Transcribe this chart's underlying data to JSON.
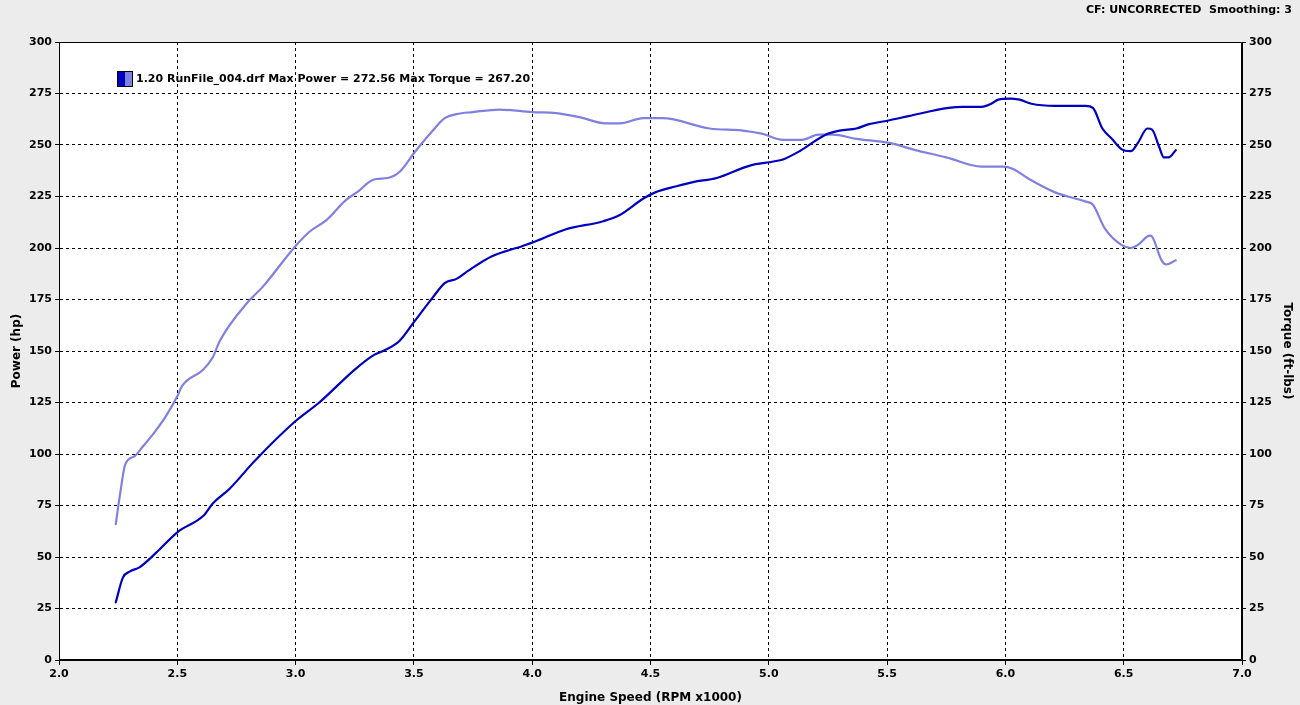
{
  "chart_data": {
    "type": "line",
    "xlabel": "Engine Speed (RPM x1000)",
    "ylabel": "Power (hp)",
    "y2label": "Torque (ft-lbs)",
    "annotations": [
      "CF: UNCORRECTED  Smoothing: 3",
      "1.20 RunFile_004.drf Max Power = 272.56 Max Torque = 267.20"
    ],
    "series": [
      {
        "color": "#0000c0",
        "x": [
          2.24,
          2.27,
          2.3,
          2.34,
          2.41,
          2.5,
          2.61,
          2.65,
          2.72,
          2.83,
          3.0,
          3.1,
          3.25,
          3.33,
          3.37,
          3.44,
          3.5,
          3.58,
          3.63,
          3.68,
          3.73,
          3.83,
          3.96,
          4.01,
          4.14,
          4.3,
          4.37,
          4.47,
          4.52,
          4.61,
          4.68,
          4.78,
          4.92,
          5.02,
          5.06,
          5.13,
          5.24,
          5.3,
          5.37,
          5.42,
          5.51,
          5.59,
          5.76,
          5.82,
          5.9,
          5.94,
          5.97,
          6.02,
          6.06,
          6.11,
          6.21,
          6.3,
          6.34,
          6.37,
          6.41,
          6.45,
          6.49,
          6.53,
          6.56,
          6.6,
          6.62,
          6.65,
          6.67,
          6.69,
          6.72
        ],
        "values": [
          28,
          40,
          43,
          45,
          52,
          62,
          70,
          76,
          83,
          97,
          116,
          125,
          141,
          148,
          150,
          155,
          164,
          176,
          183,
          185,
          189,
          196,
          201,
          203,
          209,
          213,
          216,
          224,
          227,
          230,
          232,
          234,
          240,
          242,
          243,
          247,
          255,
          257,
          258,
          260,
          262,
          264,
          268,
          268.5,
          268.5,
          270,
          272,
          272.5,
          272,
          270,
          269,
          269,
          269,
          268,
          258,
          253,
          248,
          247,
          251,
          258,
          257.5,
          249,
          244,
          244,
          247.5
        ]
      },
      {
        "color": "#8080e0",
        "axis": "y2",
        "x": [
          2.24,
          2.26,
          2.28,
          2.32,
          2.35,
          2.4,
          2.45,
          2.5,
          2.52,
          2.61,
          2.65,
          2.68,
          2.8,
          2.86,
          3.0,
          3.06,
          3.13,
          3.21,
          3.27,
          3.31,
          3.34,
          3.39,
          3.44,
          3.5,
          3.58,
          3.63,
          3.68,
          3.75,
          3.86,
          4.0,
          4.1,
          4.2,
          4.31,
          4.37,
          4.47,
          4.55,
          4.75,
          4.89,
          4.97,
          5.06,
          5.14,
          5.21,
          5.27,
          5.37,
          5.51,
          5.62,
          5.75,
          5.9,
          5.99,
          6.03,
          6.1,
          6.21,
          6.34,
          6.37,
          6.42,
          6.49,
          6.53,
          6.56,
          6.61,
          6.62,
          6.66,
          6.68,
          6.72
        ],
        "values": [
          66,
          82,
          95,
          99,
          103,
          110,
          118,
          128,
          133,
          141,
          147,
          155,
          174,
          181,
          201,
          208,
          213.5,
          223,
          228,
          232,
          233.5,
          234,
          237,
          246,
          257,
          263,
          265,
          266,
          267.2,
          266,
          265.5,
          263.5,
          260.5,
          260.5,
          263,
          263,
          258,
          257,
          255.5,
          252.5,
          252.5,
          255,
          255,
          253,
          251,
          247.5,
          244,
          239.5,
          239.5,
          238.5,
          233.5,
          227,
          222.5,
          221,
          209.5,
          201.5,
          200,
          201.5,
          206,
          205.5,
          194,
          192,
          194
        ]
      }
    ],
    "xlim": [
      2,
      7
    ],
    "xticks": [
      {
        "value": 2,
        "label": "2.0"
      },
      {
        "value": 2.5,
        "label": "2.5"
      },
      {
        "value": 3,
        "label": "3.0"
      },
      {
        "value": 3.5,
        "label": "3.5"
      },
      {
        "value": 4,
        "label": "4.0"
      },
      {
        "value": 4.5,
        "label": "4.5"
      },
      {
        "value": 5,
        "label": "5.0"
      },
      {
        "value": 5.5,
        "label": "5.5"
      },
      {
        "value": 6,
        "label": "6.0"
      },
      {
        "value": 6.5,
        "label": "6.5"
      },
      {
        "value": 7,
        "label": "7.0"
      }
    ],
    "ylim": [
      0,
      300
    ],
    "yticks": [
      0,
      25,
      50,
      75,
      100,
      125,
      150,
      175,
      200,
      225,
      250,
      275,
      300
    ],
    "y2lim": [
      0,
      300
    ],
    "y2ticks": [
      0,
      25,
      50,
      75,
      100,
      125,
      150,
      175,
      200,
      225,
      250,
      275,
      300
    ],
    "grid": true,
    "marker": "none",
    "line_style": "solid"
  }
}
